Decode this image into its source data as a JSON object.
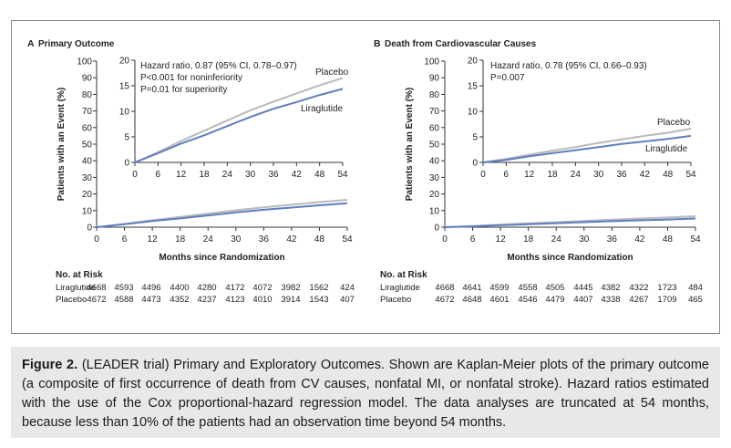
{
  "chart_data": [
    {
      "panel_letter": "A",
      "title": "Primary Outcome",
      "type": "line",
      "ylabel": "Patients with an Event (%)",
      "xlabel": "Months since Randomization",
      "xticks": [
        0,
        6,
        12,
        18,
        24,
        30,
        36,
        42,
        48,
        54
      ],
      "xlim": [
        0,
        54
      ],
      "main_yticks": [
        "0",
        "10",
        "20",
        "30",
        "40",
        "50",
        "60",
        "70",
        "80",
        "90",
        "100"
      ],
      "main_ylim": [
        0,
        100
      ],
      "inset_yticks": [
        "0",
        "5",
        "10",
        "15",
        "20"
      ],
      "inset_ylim": [
        0,
        20
      ],
      "annotation": [
        "Hazard ratio, 0.87 (95% CI, 0.78–0.97)",
        "P<0.001 for noninferiority",
        "P=0.01 for superiority"
      ],
      "series": [
        {
          "name": "Placebo",
          "color": "#b9b9b9",
          "x": [
            0,
            6,
            12,
            18,
            24,
            30,
            36,
            42,
            48,
            54
          ],
          "y": [
            0,
            2.0,
            4.2,
            6.2,
            8.2,
            10.2,
            11.9,
            13.5,
            15.1,
            16.5
          ]
        },
        {
          "name": "Liraglutide",
          "color": "#5d7fbf",
          "x": [
            0,
            6,
            12,
            18,
            24,
            30,
            36,
            42,
            48,
            54
          ],
          "y": [
            0,
            1.8,
            3.7,
            5.3,
            7.1,
            8.9,
            10.5,
            11.8,
            13.2,
            14.4
          ]
        }
      ],
      "at_risk": {
        "heading": "No. at Risk",
        "rows": [
          {
            "label": "Liraglutide",
            "values": [
              "4668",
              "4593",
              "4496",
              "4400",
              "4280",
              "4172",
              "4072",
              "3982",
              "1562",
              "424"
            ]
          },
          {
            "label": "Placebo",
            "values": [
              "4672",
              "4588",
              "4473",
              "4352",
              "4237",
              "4123",
              "4010",
              "3914",
              "1543",
              "407"
            ]
          }
        ]
      }
    },
    {
      "panel_letter": "B",
      "title": "Death from Cardiovascular Causes",
      "type": "line",
      "ylabel": "Patients with an Event (%)",
      "xlabel": "Months since Randomization",
      "xticks": [
        0,
        6,
        12,
        18,
        24,
        30,
        36,
        42,
        48,
        54
      ],
      "xlim": [
        0,
        54
      ],
      "main_yticks": [
        "0",
        "10",
        "20",
        "30",
        "40",
        "50",
        "60",
        "70",
        "80",
        "90",
        "100"
      ],
      "main_ylim": [
        0,
        100
      ],
      "inset_yticks": [
        "0",
        "5",
        "10",
        "15",
        "20"
      ],
      "inset_ylim": [
        0,
        20
      ],
      "annotation": [
        "Hazard ratio, 0.78 (95% CI, 0.66–0.93)",
        "P=0.007"
      ],
      "series": [
        {
          "name": "Placebo",
          "color": "#b9b9b9",
          "x": [
            0,
            6,
            12,
            18,
            24,
            30,
            36,
            42,
            48,
            54
          ],
          "y": [
            0,
            0.7,
            1.5,
            2.3,
            3.0,
            3.8,
            4.5,
            5.2,
            5.8,
            6.6
          ]
        },
        {
          "name": "Liraglutide",
          "color": "#5d7fbf",
          "x": [
            0,
            6,
            12,
            18,
            24,
            30,
            36,
            42,
            48,
            54
          ],
          "y": [
            0,
            0.5,
            1.2,
            1.8,
            2.4,
            3.0,
            3.6,
            4.1,
            4.6,
            5.2
          ]
        }
      ],
      "at_risk": {
        "heading": "No. at Risk",
        "rows": [
          {
            "label": "Liraglutide",
            "values": [
              "4668",
              "4641",
              "4599",
              "4558",
              "4505",
              "4445",
              "4382",
              "4322",
              "1723",
              "484"
            ]
          },
          {
            "label": "Placebo",
            "values": [
              "4672",
              "4648",
              "4601",
              "4546",
              "4479",
              "4407",
              "4338",
              "4267",
              "1709",
              "465"
            ]
          }
        ]
      }
    }
  ],
  "caption": {
    "label": "Figure 2.",
    "text": " (LEADER trial) Primary and Exploratory Outcomes. Shown are Kaplan-Meier plots of the primary outcome (a composite of first occurrence of death from CV causes, nonfatal MI, or nonfatal stroke). Hazard ratios estimated with the use of the Cox proportional-hazard regression model. The data analyses are truncated at 54 months, because less than 10% of the patients had an observation time beyond 54 months."
  }
}
